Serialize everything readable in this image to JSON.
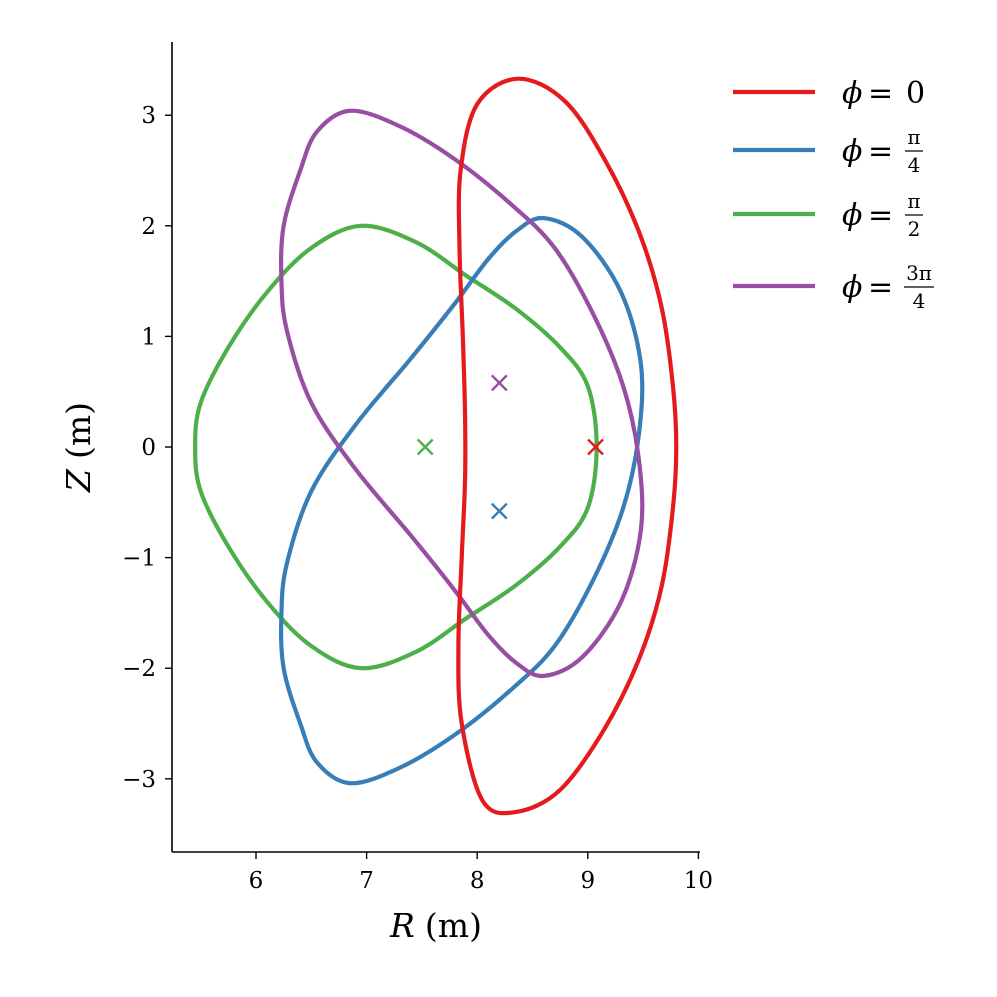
{
  "chart_data": {
    "type": "line",
    "xlabel_symbol": "R",
    "xlabel_unit": "(m)",
    "ylabel_symbol": "Z",
    "ylabel_unit": "(m)",
    "xlim": [
      5.25,
      10.0
    ],
    "ylim": [
      -3.65,
      3.65
    ],
    "x_ticks": [
      6,
      7,
      8,
      9,
      10
    ],
    "y_ticks": [
      -3,
      -2,
      -1,
      0,
      1,
      2,
      3
    ],
    "x_tick_labels": [
      "6",
      "7",
      "8",
      "9",
      "10"
    ],
    "y_tick_labels": [
      "−3",
      "−2",
      "−1",
      "0",
      "1",
      "2",
      "3"
    ],
    "grid": false,
    "legend_position": "top-right (outside plot)",
    "series": [
      {
        "name": "φ = 0",
        "legend": {
          "symbol": "ϕ",
          "eq": "=",
          "value": "0"
        },
        "color": "#e41a1c",
        "axis": {
          "R": 9.07,
          "Z": 0.0
        },
        "boundary": {
          "R": [
            9.8,
            9.77,
            9.67,
            9.48,
            9.18,
            8.8,
            8.37,
            8.0,
            7.85,
            7.84,
            7.87,
            7.89,
            7.89,
            7.86,
            7.83,
            7.86,
            8.05,
            8.35,
            8.75,
            9.15,
            9.47,
            9.67,
            9.77,
            9.8
          ],
          "Z": [
            0.0,
            0.55,
            1.25,
            1.9,
            2.55,
            3.12,
            3.33,
            3.1,
            2.5,
            1.8,
            1.0,
            0.3,
            -0.3,
            -1.0,
            -1.8,
            -2.5,
            -3.2,
            -3.3,
            -3.1,
            -2.55,
            -1.9,
            -1.25,
            -0.55,
            0.0
          ]
        }
      },
      {
        "name": "φ = π/4",
        "legend": {
          "symbol": "ϕ",
          "eq": "=",
          "num": "π",
          "den": "4"
        },
        "color": "#377eb8",
        "axis": {
          "R": 8.2,
          "Z": -0.58
        },
        "boundary": {
          "R": [
            8.6,
            8.95,
            9.3,
            9.48,
            9.46,
            9.32,
            9.05,
            8.7,
            8.3,
            7.8,
            7.3,
            6.85,
            6.55,
            6.4,
            6.25,
            6.23,
            6.28,
            6.5,
            6.9,
            7.4,
            7.8,
            8.1,
            8.35,
            8.6
          ],
          "Z": [
            2.07,
            1.9,
            1.4,
            0.75,
            0.1,
            -0.55,
            -1.2,
            -1.8,
            -2.2,
            -2.6,
            -2.9,
            -3.04,
            -2.85,
            -2.5,
            -2.0,
            -1.5,
            -1.05,
            -0.4,
            0.2,
            0.8,
            1.3,
            1.7,
            1.95,
            2.07
          ]
        }
      },
      {
        "name": "φ = π/2",
        "legend": {
          "symbol": "ϕ",
          "eq": "=",
          "num": "π",
          "den": "2"
        },
        "color": "#4daf4a",
        "axis": {
          "R": 7.53,
          "Z": 0.0
        },
        "boundary": {
          "R": [
            9.08,
            9.0,
            8.75,
            8.35,
            7.9,
            7.45,
            6.95,
            6.5,
            6.1,
            5.75,
            5.5,
            5.45,
            5.5,
            5.75,
            6.1,
            6.5,
            6.95,
            7.45,
            7.9,
            8.35,
            8.75,
            9.0,
            9.08
          ],
          "Z": [
            0.0,
            0.55,
            0.9,
            1.25,
            1.55,
            1.85,
            2.0,
            1.8,
            1.4,
            0.9,
            0.4,
            0.0,
            -0.4,
            -0.9,
            -1.4,
            -1.8,
            -2.0,
            -1.85,
            -1.55,
            -1.25,
            -0.9,
            -0.55,
            0.0
          ]
        }
      },
      {
        "name": "φ = 3π/4",
        "legend": {
          "symbol": "ϕ",
          "eq": "=",
          "num": "3π",
          "den": "4"
        },
        "color": "#984ea3",
        "axis": {
          "R": 8.2,
          "Z": 0.58
        },
        "boundary": {
          "R": [
            6.85,
            6.55,
            6.4,
            6.25,
            6.23,
            6.28,
            6.5,
            6.9,
            7.4,
            7.8,
            8.1,
            8.35,
            8.6,
            8.95,
            9.3,
            9.48,
            9.46,
            9.32,
            9.05,
            8.7,
            8.3,
            7.8,
            7.3,
            6.85
          ],
          "Z": [
            3.04,
            2.85,
            2.5,
            2.0,
            1.5,
            1.05,
            0.4,
            -0.2,
            -0.8,
            -1.3,
            -1.7,
            -1.95,
            -2.07,
            -1.9,
            -1.4,
            -0.75,
            -0.1,
            0.55,
            1.2,
            1.8,
            2.2,
            2.6,
            2.9,
            3.04
          ]
        }
      }
    ]
  }
}
